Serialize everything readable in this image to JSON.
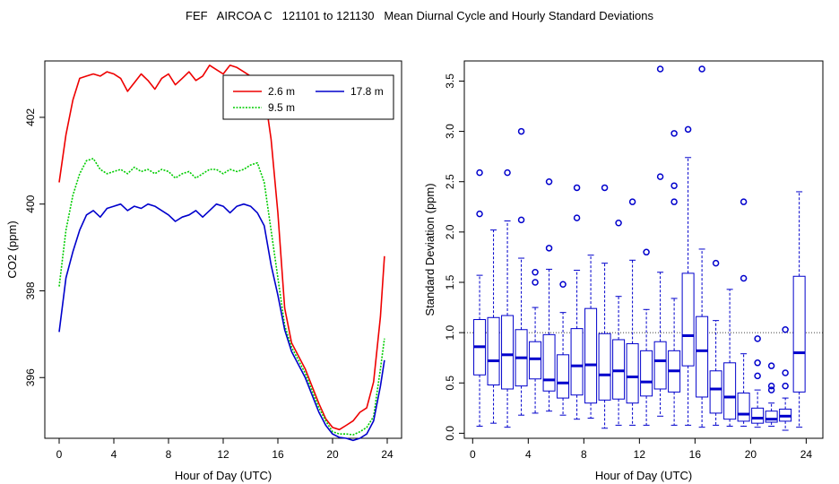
{
  "title": "FEF   AIRCOA C   121101 to 121130   Mean Diurnal Cycle and Hourly Standard Deviations",
  "chart_data": [
    {
      "type": "line",
      "xlabel": "Hour of Day (UTC)",
      "ylabel": "CO2 (ppm)",
      "xlim": [
        0,
        24
      ],
      "ylim": [
        394.6,
        403.3
      ],
      "xticks": [
        "0",
        "4",
        "8",
        "12",
        "16",
        "20",
        "24"
      ],
      "yticks": [
        "396",
        "398",
        "400",
        "402"
      ],
      "grid": false,
      "legend_position": "top-right",
      "series": [
        {
          "name": "2.6 m",
          "color": "#ee0000",
          "line": "solid",
          "x": [
            0,
            0.5,
            1,
            1.5,
            2,
            2.5,
            3,
            3.5,
            4,
            4.5,
            5,
            5.5,
            6,
            6.5,
            7,
            7.5,
            8,
            8.5,
            9,
            9.5,
            10,
            10.5,
            11,
            11.5,
            12,
            12.5,
            13,
            13.5,
            14,
            14.5,
            15,
            15.5,
            16,
            16.5,
            17,
            17.5,
            18,
            18.5,
            19,
            19.5,
            20,
            20.5,
            21,
            21.5,
            22,
            22.5,
            23,
            23.5,
            23.8
          ],
          "y": [
            400.5,
            401.6,
            402.4,
            402.9,
            402.95,
            403.0,
            402.95,
            403.05,
            403.0,
            402.9,
            402.6,
            402.8,
            403.0,
            402.85,
            402.65,
            402.9,
            403.0,
            402.75,
            402.9,
            403.05,
            402.85,
            402.95,
            403.2,
            403.1,
            403.0,
            403.2,
            403.15,
            403.05,
            402.95,
            402.8,
            402.6,
            401.5,
            399.8,
            397.6,
            396.8,
            396.5,
            396.2,
            395.8,
            395.4,
            395.05,
            394.85,
            394.8,
            394.9,
            395.0,
            395.2,
            395.3,
            395.9,
            397.4,
            398.8
          ]
        },
        {
          "name": "9.5 m",
          "color": "#00cc00",
          "line": "dotted",
          "x": [
            0,
            0.5,
            1,
            1.5,
            2,
            2.5,
            3,
            3.5,
            4,
            4.5,
            5,
            5.5,
            6,
            6.5,
            7,
            7.5,
            8,
            8.5,
            9,
            9.5,
            10,
            10.5,
            11,
            11.5,
            12,
            12.5,
            13,
            13.5,
            14,
            14.5,
            15,
            15.5,
            16,
            16.5,
            17,
            17.5,
            18,
            18.5,
            19,
            19.5,
            20,
            20.5,
            21,
            21.5,
            22,
            22.5,
            23,
            23.5,
            23.8
          ],
          "y": [
            398.1,
            399.4,
            400.2,
            400.7,
            401.0,
            401.05,
            400.8,
            400.7,
            400.75,
            400.8,
            400.7,
            400.85,
            400.75,
            400.8,
            400.7,
            400.8,
            400.75,
            400.6,
            400.7,
            400.75,
            400.6,
            400.7,
            400.8,
            400.8,
            400.7,
            400.8,
            400.75,
            400.8,
            400.9,
            400.95,
            400.5,
            399.4,
            398.3,
            397.2,
            396.7,
            396.4,
            396.1,
            395.7,
            395.3,
            395.0,
            394.75,
            394.7,
            394.7,
            394.68,
            394.75,
            394.85,
            395.1,
            396.2,
            396.9
          ]
        },
        {
          "name": "17.8 m",
          "color": "#0000cc",
          "line": "solid",
          "x": [
            0,
            0.5,
            1,
            1.5,
            2,
            2.5,
            3,
            3.5,
            4,
            4.5,
            5,
            5.5,
            6,
            6.5,
            7,
            7.5,
            8,
            8.5,
            9,
            9.5,
            10,
            10.5,
            11,
            11.5,
            12,
            12.5,
            13,
            13.5,
            14,
            14.5,
            15,
            15.5,
            16,
            16.5,
            17,
            17.5,
            18,
            18.5,
            19,
            19.5,
            20,
            20.5,
            21,
            21.5,
            22,
            22.5,
            23,
            23.5,
            23.8
          ],
          "y": [
            397.05,
            398.3,
            398.9,
            399.4,
            399.75,
            399.85,
            399.7,
            399.9,
            399.95,
            400.0,
            399.85,
            399.95,
            399.9,
            400.0,
            399.95,
            399.85,
            399.75,
            399.6,
            399.7,
            399.75,
            399.85,
            399.7,
            399.85,
            400.0,
            399.95,
            399.8,
            399.95,
            400.0,
            399.95,
            399.8,
            399.5,
            398.6,
            397.9,
            397.1,
            396.6,
            396.3,
            396.0,
            395.6,
            395.2,
            394.9,
            394.7,
            394.62,
            394.6,
            394.55,
            394.6,
            394.7,
            395.0,
            395.8,
            396.4
          ]
        }
      ]
    },
    {
      "type": "box",
      "xlabel": "Hour of Day (UTC)",
      "ylabel": "Standard Deviation (ppm)",
      "xlim": [
        -0.6,
        25.2
      ],
      "ylim": [
        -0.05,
        3.7
      ],
      "xticks": [
        "0",
        "4",
        "8",
        "12",
        "16",
        "20",
        "24"
      ],
      "yticks": [
        "0.0",
        "0.5",
        "1.0",
        "1.5",
        "2.0",
        "2.5",
        "3.0",
        "3.5"
      ],
      "reference_line_y": 1.0,
      "color": "#0000cc",
      "boxes": [
        {
          "x": 0.5,
          "whisker_low": 0.07,
          "q1": 0.58,
          "median": 0.86,
          "q3": 1.13,
          "whisker_high": 1.57,
          "outliers": [
            2.18,
            2.59
          ]
        },
        {
          "x": 1.5,
          "whisker_low": 0.1,
          "q1": 0.48,
          "median": 0.72,
          "q3": 1.15,
          "whisker_high": 2.02,
          "outliers": []
        },
        {
          "x": 2.5,
          "whisker_low": 0.06,
          "q1": 0.44,
          "median": 0.78,
          "q3": 1.17,
          "whisker_high": 2.11,
          "outliers": [
            2.59
          ]
        },
        {
          "x": 3.5,
          "whisker_low": 0.18,
          "q1": 0.47,
          "median": 0.75,
          "q3": 1.03,
          "whisker_high": 1.74,
          "outliers": [
            2.12,
            3.0
          ]
        },
        {
          "x": 4.5,
          "whisker_low": 0.2,
          "q1": 0.54,
          "median": 0.74,
          "q3": 0.91,
          "whisker_high": 1.25,
          "outliers": [
            1.5,
            1.6
          ]
        },
        {
          "x": 5.5,
          "whisker_low": 0.22,
          "q1": 0.42,
          "median": 0.53,
          "q3": 0.98,
          "whisker_high": 1.63,
          "outliers": [
            1.84,
            2.5
          ]
        },
        {
          "x": 6.5,
          "whisker_low": 0.18,
          "q1": 0.35,
          "median": 0.5,
          "q3": 0.78,
          "whisker_high": 1.2,
          "outliers": [
            1.48
          ]
        },
        {
          "x": 7.5,
          "whisker_low": 0.14,
          "q1": 0.38,
          "median": 0.67,
          "q3": 1.04,
          "whisker_high": 1.62,
          "outliers": [
            2.14,
            2.44
          ]
        },
        {
          "x": 8.5,
          "whisker_low": 0.15,
          "q1": 0.3,
          "median": 0.68,
          "q3": 1.24,
          "whisker_high": 1.77,
          "outliers": []
        },
        {
          "x": 9.5,
          "whisker_low": 0.05,
          "q1": 0.33,
          "median": 0.58,
          "q3": 0.99,
          "whisker_high": 1.69,
          "outliers": [
            2.44
          ]
        },
        {
          "x": 10.5,
          "whisker_low": 0.08,
          "q1": 0.34,
          "median": 0.62,
          "q3": 0.93,
          "whisker_high": 1.36,
          "outliers": [
            2.09
          ]
        },
        {
          "x": 11.5,
          "whisker_low": 0.08,
          "q1": 0.3,
          "median": 0.56,
          "q3": 0.89,
          "whisker_high": 1.72,
          "outliers": [
            2.3
          ]
        },
        {
          "x": 12.5,
          "whisker_low": 0.08,
          "q1": 0.37,
          "median": 0.51,
          "q3": 0.82,
          "whisker_high": 1.23,
          "outliers": [
            1.8
          ]
        },
        {
          "x": 13.5,
          "whisker_low": 0.17,
          "q1": 0.44,
          "median": 0.72,
          "q3": 0.91,
          "whisker_high": 1.6,
          "outliers": [
            2.55,
            3.62
          ]
        },
        {
          "x": 14.5,
          "whisker_low": 0.08,
          "q1": 0.41,
          "median": 0.62,
          "q3": 0.82,
          "whisker_high": 1.34,
          "outliers": [
            2.3,
            2.46,
            2.98
          ]
        },
        {
          "x": 15.5,
          "whisker_low": 0.08,
          "q1": 0.67,
          "median": 0.97,
          "q3": 1.59,
          "whisker_high": 2.74,
          "outliers": [
            3.02
          ]
        },
        {
          "x": 16.5,
          "whisker_low": 0.06,
          "q1": 0.36,
          "median": 0.82,
          "q3": 1.16,
          "whisker_high": 1.83,
          "outliers": [
            3.62
          ]
        },
        {
          "x": 17.5,
          "whisker_low": 0.08,
          "q1": 0.2,
          "median": 0.44,
          "q3": 0.62,
          "whisker_high": 1.12,
          "outliers": [
            1.69
          ]
        },
        {
          "x": 18.5,
          "whisker_low": 0.07,
          "q1": 0.14,
          "median": 0.36,
          "q3": 0.7,
          "whisker_high": 1.43,
          "outliers": []
        },
        {
          "x": 19.5,
          "whisker_low": 0.07,
          "q1": 0.12,
          "median": 0.19,
          "q3": 0.4,
          "whisker_high": 0.79,
          "outliers": [
            1.54,
            2.3
          ]
        },
        {
          "x": 20.5,
          "whisker_low": 0.06,
          "q1": 0.1,
          "median": 0.15,
          "q3": 0.25,
          "whisker_high": 0.43,
          "outliers": [
            0.57,
            0.7,
            0.94
          ]
        },
        {
          "x": 21.5,
          "whisker_low": 0.07,
          "q1": 0.11,
          "median": 0.14,
          "q3": 0.22,
          "whisker_high": 0.3,
          "outliers": [
            0.43,
            0.47,
            0.67
          ]
        },
        {
          "x": 22.5,
          "whisker_low": 0.03,
          "q1": 0.12,
          "median": 0.17,
          "q3": 0.24,
          "whisker_high": 0.35,
          "outliers": [
            0.47,
            0.6,
            1.03
          ]
        },
        {
          "x": 23.5,
          "whisker_low": 0.06,
          "q1": 0.41,
          "median": 0.8,
          "q3": 1.56,
          "whisker_high": 2.4,
          "outliers": []
        }
      ]
    }
  ]
}
